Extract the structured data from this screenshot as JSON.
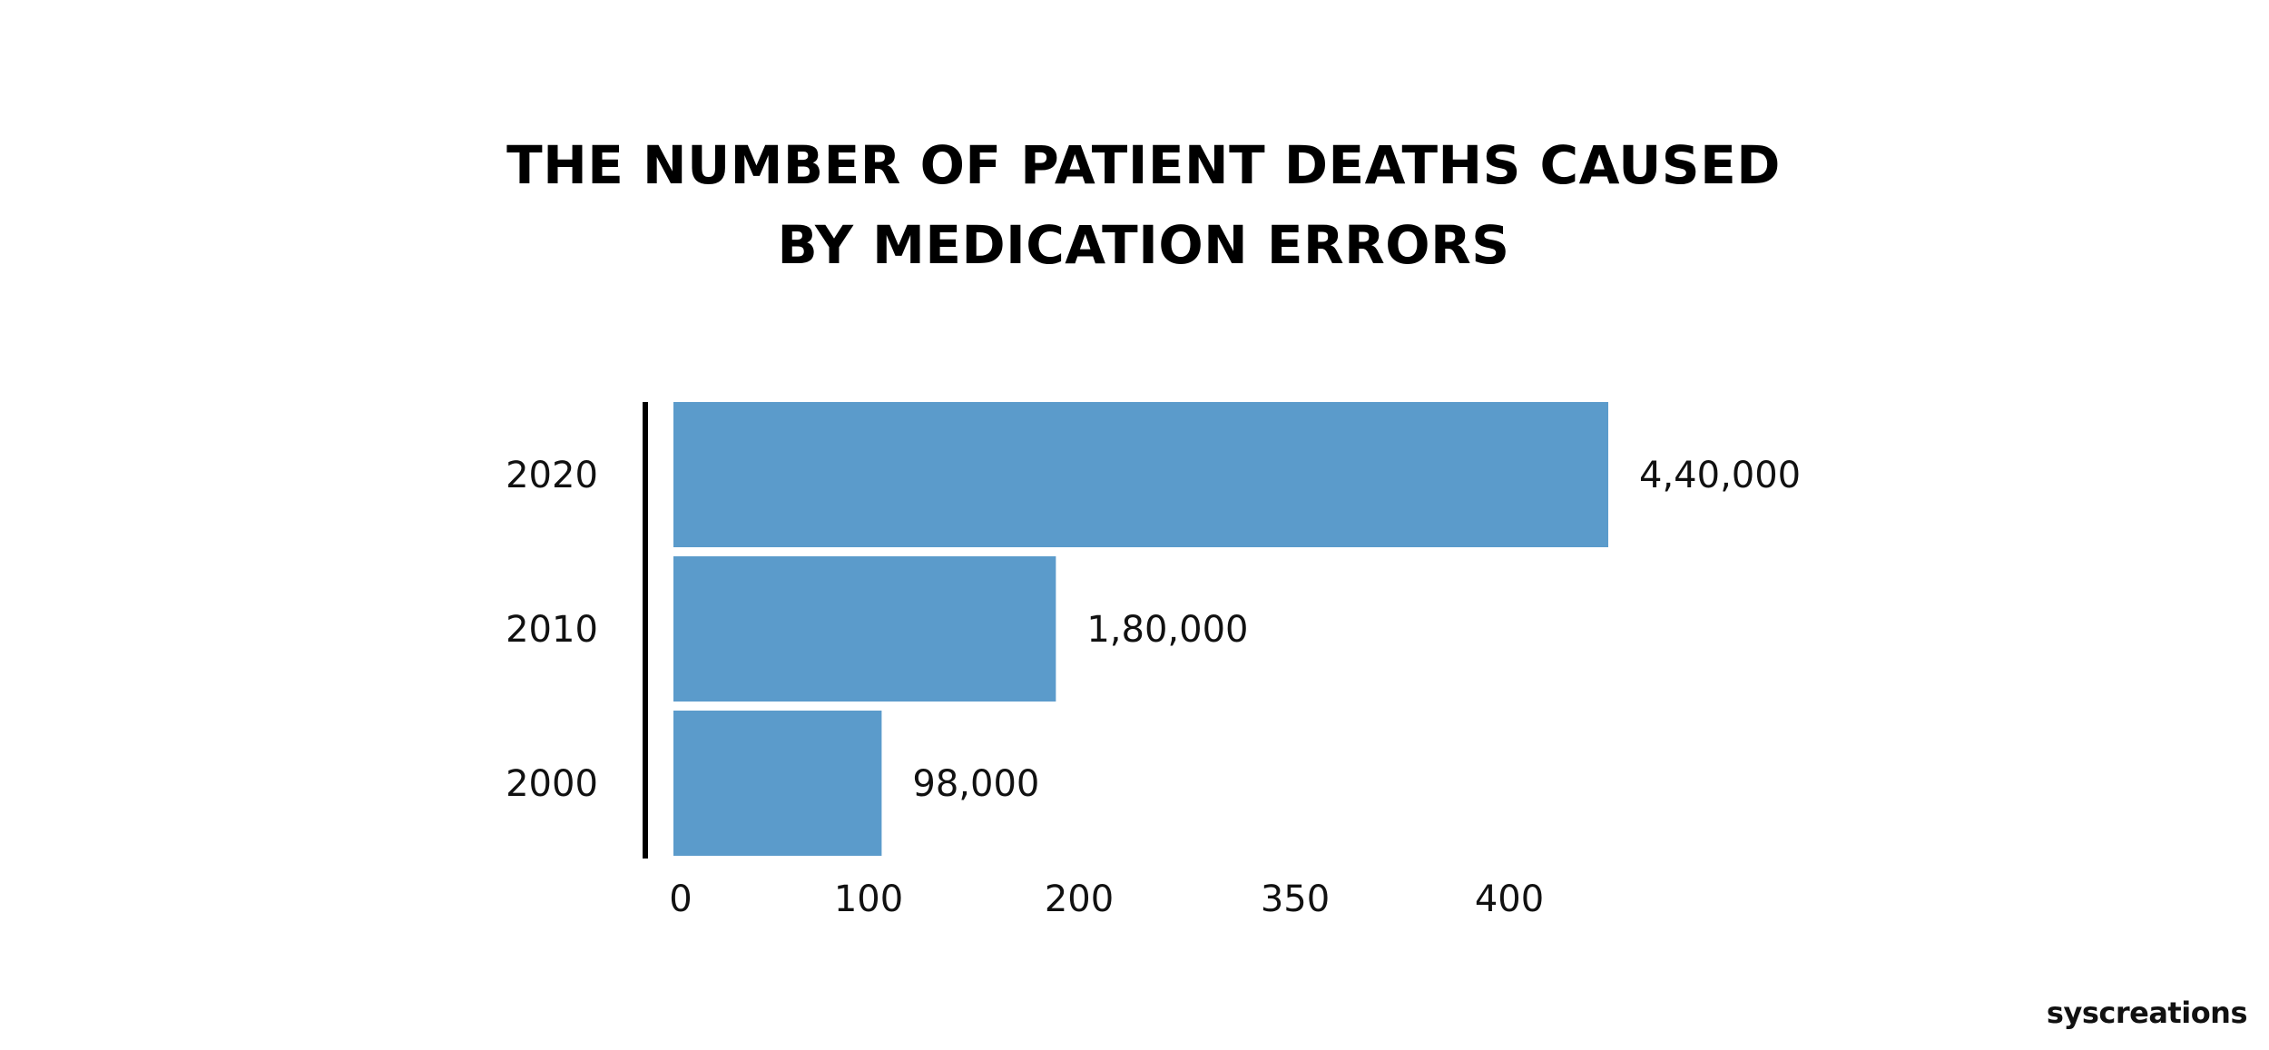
{
  "chart_data": {
    "type": "bar",
    "orientation": "horizontal",
    "title_lines": [
      "THE NUMBER OF PATIENT DEATHS CAUSED",
      "BY MEDICATION ERRORS"
    ],
    "categories": [
      "2020",
      "2010",
      "2000"
    ],
    "values": [
      440000,
      180000,
      98000
    ],
    "value_labels": [
      "4,40,000",
      "1,80,000",
      "98,000"
    ],
    "x_tick_labels": [
      "0",
      "100",
      "200",
      "350",
      "400"
    ],
    "xlabel": "",
    "ylabel": "",
    "xlim": [
      0,
      440000
    ],
    "bar_color": "#5b9bcb",
    "grid": false,
    "legend": "none"
  },
  "branding": {
    "logo_text": "syscreations"
  }
}
